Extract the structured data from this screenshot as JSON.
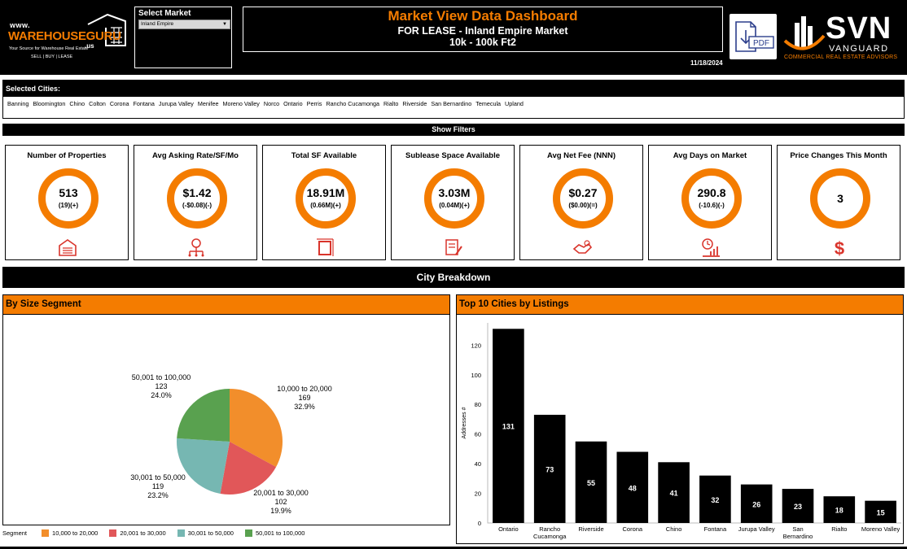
{
  "header": {
    "logo": {
      "www": "www.",
      "name": "WAREHOUSEGURU",
      "tld": ".us",
      "tagline": "Your Source for Warehouse Real Estate",
      "tagline2": "SELL | BUY | LEASE"
    },
    "select_market_label": "Select Market",
    "selected_market": "Inland Empire",
    "title": "Market View Data Dashboard",
    "subtitle": "FOR LEASE - Inland Empire Market",
    "size_range": "10k - 100k Ft2",
    "date": "11/18/2024",
    "pdf_label": "PDF",
    "svn_logo": {
      "name": "SVN",
      "sub": "VANGUARD",
      "tagline": "COMMERCIAL REAL ESTATE ADVISORS"
    }
  },
  "selected_cities": {
    "label": "Selected Cities:",
    "cities": [
      "Banning",
      "Bloomington",
      "Chino",
      "Colton",
      "Corona",
      "Fontana",
      "Jurupa Valley",
      "Menifee",
      "Moreno Valley",
      "Norco",
      "Ontario",
      "Perris",
      "Rancho Cucamonga",
      "Rialto",
      "Riverside",
      "San Bernardino",
      "Temecula",
      "Upland"
    ]
  },
  "show_filters_label": "Show Filters",
  "kpis": [
    {
      "title": "Number of Properties",
      "value": "513",
      "change": "(19)(+)",
      "icon": "warehouse-icon"
    },
    {
      "title": "Avg Asking Rate/SF/Mo",
      "value": "$1.42",
      "change": "(-$0.08)(-)",
      "icon": "money-network-icon"
    },
    {
      "title": "Total SF Available",
      "value": "18.91M",
      "change": "(0.66M)(+)",
      "icon": "square-footage-icon"
    },
    {
      "title": "Sublease Space Available",
      "value": "3.03M",
      "change": "(0.04M)(+)",
      "icon": "contract-icon"
    },
    {
      "title": "Avg Net Fee (NNN)",
      "value": "$0.27",
      "change": "($0.00)(=)",
      "icon": "handshake-money-icon"
    },
    {
      "title": "Avg Days on Market",
      "value": "290.8",
      "change": "(-10.6)(-)",
      "icon": "clock-chart-icon"
    },
    {
      "title": "Price Changes This Month",
      "value": "3",
      "change": "",
      "icon": "dollar-icon"
    }
  ],
  "city_breakdown_label": "City Breakdown",
  "size_segment": {
    "title": "By Size Segment",
    "legend_title": "Segment",
    "labels": [
      {
        "name": "10,000 to 20,000",
        "count": "169",
        "pct": "32.9%"
      },
      {
        "name": "20,001 to 30,000",
        "count": "102",
        "pct": "19.9%"
      },
      {
        "name": "30,001 to 50,000",
        "count": "119",
        "pct": "23.2%"
      },
      {
        "name": "50,001 to 100,000",
        "count": "123",
        "pct": "24.0%"
      }
    ]
  },
  "top_cities": {
    "title": "Top 10 Cities by Listings",
    "ylabel": "Addresses #"
  },
  "chart_data": [
    {
      "type": "pie",
      "title": "By Size Segment",
      "categories": [
        "10,000 to 20,000",
        "20,001 to 30,000",
        "30,001 to 50,000",
        "50,001 to 100,000"
      ],
      "values": [
        169,
        102,
        119,
        123
      ],
      "percents": [
        32.9,
        19.9,
        23.2,
        24.0
      ],
      "colors": [
        "#f28e2b",
        "#e15759",
        "#76b7b2",
        "#59a14f"
      ],
      "legend": "bottom-left"
    },
    {
      "type": "bar",
      "title": "Top 10 Cities by Listings",
      "categories": [
        "Ontario",
        "Rancho Cucamonga",
        "Riverside",
        "Corona",
        "Chino",
        "Fontana",
        "Jurupa Valley",
        "San Bernardino",
        "Rialto",
        "Moreno Valley"
      ],
      "values": [
        131,
        73,
        55,
        48,
        41,
        32,
        26,
        23,
        18,
        15
      ],
      "ylabel": "Addresses #",
      "ylim": [
        0,
        135
      ],
      "yticks": [
        0,
        20,
        40,
        60,
        80,
        100,
        120
      ],
      "color": "#000000",
      "grid": false
    }
  ]
}
